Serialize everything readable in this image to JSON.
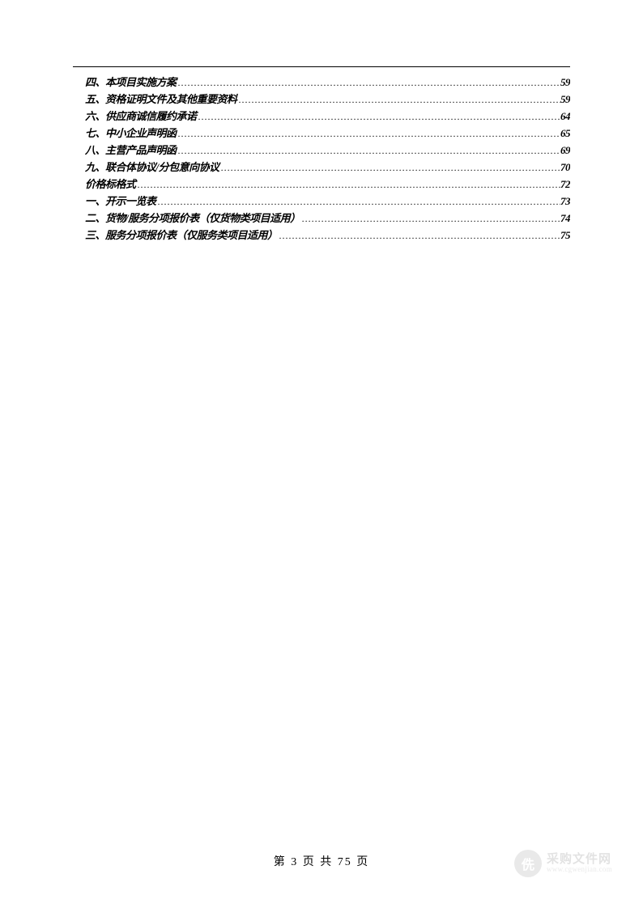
{
  "toc": {
    "entries": [
      {
        "label": "四、本项目实施方案",
        "page": "59"
      },
      {
        "label": "五、资格证明文件及其他重要资料",
        "page": "59"
      },
      {
        "label": "六、供应商诚信履约承诺",
        "page": "64"
      },
      {
        "label": "七、中小企业声明函",
        "page": "65"
      },
      {
        "label": "八、主营产品声明函",
        "page": "69"
      },
      {
        "label": "九、联合体协议/分包意向协议",
        "page": "70"
      },
      {
        "label": "价格标格式",
        "page": "72"
      },
      {
        "label": "一、开示一览表",
        "page": "73"
      },
      {
        "label": "二、货物/服务分项报价表（仅货物类项目适用）",
        "page": "74"
      },
      {
        "label": "三、服务分项报价表（仅服务类项目适用）",
        "page": "75"
      }
    ]
  },
  "footer": {
    "text": "第 3 页 共 75 页"
  },
  "watermark": {
    "iconGlyph": "侁",
    "title": "采购文件网",
    "url": "www.cgwenjian.com"
  },
  "colors": {
    "text": "#000000",
    "background": "#ffffff",
    "watermark": "#888888"
  },
  "typography": {
    "toc_fontsize": 13,
    "toc_fontstyle": "italic",
    "toc_fontweight": 600,
    "footer_fontsize": 14
  }
}
